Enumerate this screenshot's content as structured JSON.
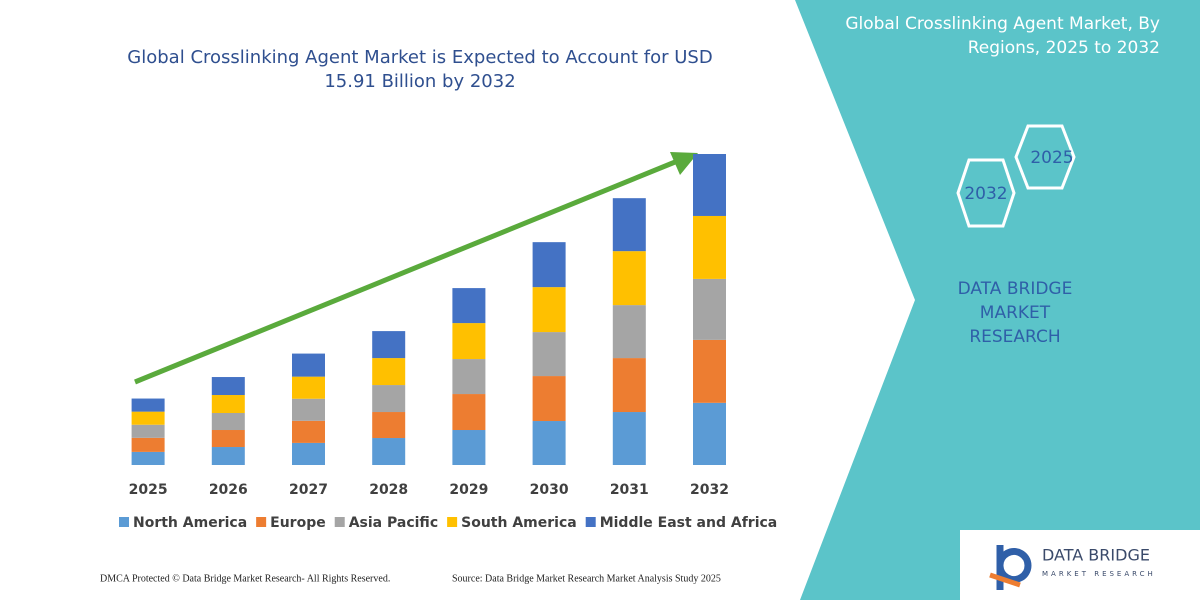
{
  "chart_data": {
    "type": "bar",
    "stacked": true,
    "title": "Global Crosslinking Agent Market is Expected to Account for USD 15.91 Billion by 2032",
    "categories": [
      "2025",
      "2026",
      "2027",
      "2028",
      "2029",
      "2030",
      "2031",
      "2032"
    ],
    "series": [
      {
        "name": "North America",
        "color": "#5b9bd5",
        "values": [
          0.67,
          0.92,
          1.13,
          1.38,
          1.79,
          2.25,
          2.71,
          3.18
        ]
      },
      {
        "name": "Europe",
        "color": "#ed7d31",
        "values": [
          0.72,
          0.87,
          1.13,
          1.33,
          1.84,
          2.3,
          2.76,
          3.22
        ]
      },
      {
        "name": "Asia Pacific",
        "color": "#a5a5a5",
        "values": [
          0.67,
          0.87,
          1.13,
          1.38,
          1.79,
          2.25,
          2.71,
          3.12
        ]
      },
      {
        "name": "South America",
        "color": "#ffc000",
        "values": [
          0.67,
          0.92,
          1.13,
          1.38,
          1.84,
          2.3,
          2.76,
          3.22
        ]
      },
      {
        "name": "Middle East and Africa",
        "color": "#4472c4",
        "values": [
          0.67,
          0.92,
          1.18,
          1.38,
          1.79,
          2.3,
          2.71,
          3.17
        ]
      }
    ]
  },
  "panel": {
    "title": "Global Crosslinking Agent Market, By Regions, 2025 to 2032",
    "hexagons": [
      "2032",
      "2025"
    ],
    "brand": "DATA BRIDGE MARKET RESEARCH"
  },
  "logo": {
    "name": "DATA BRIDGE",
    "tagline": "MARKET RESEARCH"
  },
  "footer": {
    "left": "DMCA Protected © Data Bridge Market Research- All Rights Reserved.",
    "right": "Source: Data Bridge Market Research Market Analysis Study 2025"
  }
}
